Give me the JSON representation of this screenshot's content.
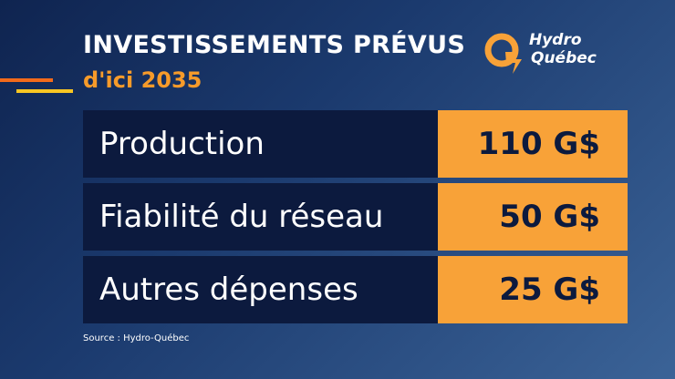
{
  "header": {
    "title": "INVESTISSEMENTS PRÉVUS",
    "subtitle": "d'ici 2035"
  },
  "logo": {
    "line1": "Hydro",
    "line2": "Québec",
    "icon": "hydro-quebec-q-icon",
    "color": "#f8a238"
  },
  "rows": [
    {
      "label": "Production",
      "value": "110 G$"
    },
    {
      "label": "Fiabilité du réseau",
      "value": "50 G$"
    },
    {
      "label": "Autres dépenses",
      "value": "25 G$"
    }
  ],
  "footer": {
    "source": "Source : Hydro-Québec"
  },
  "colors": {
    "accent_orange": "#f26a1b",
    "accent_yellow": "#f9c623",
    "row_label_bg": "#0c1a3e",
    "row_value_bg": "#f8a238"
  }
}
